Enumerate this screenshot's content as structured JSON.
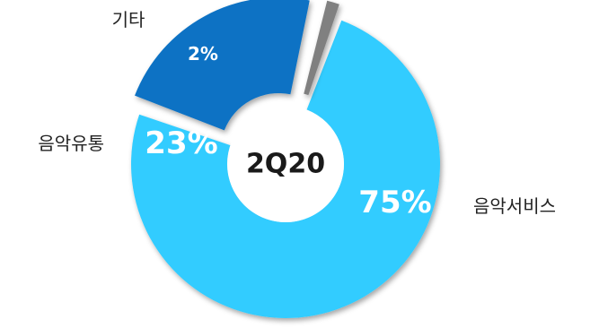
{
  "chart_data": {
    "type": "pie",
    "style": "donut",
    "center_label": "2Q20",
    "categories": [
      "음악서비스",
      "음악유통",
      "기타"
    ],
    "values": [
      75,
      23,
      2
    ],
    "value_labels": [
      "75%",
      "23%",
      "2%"
    ],
    "colors": [
      "#33ccff",
      "#0a72c4",
      "#808080"
    ],
    "exploded": [
      "음악유통",
      "기타"
    ]
  }
}
